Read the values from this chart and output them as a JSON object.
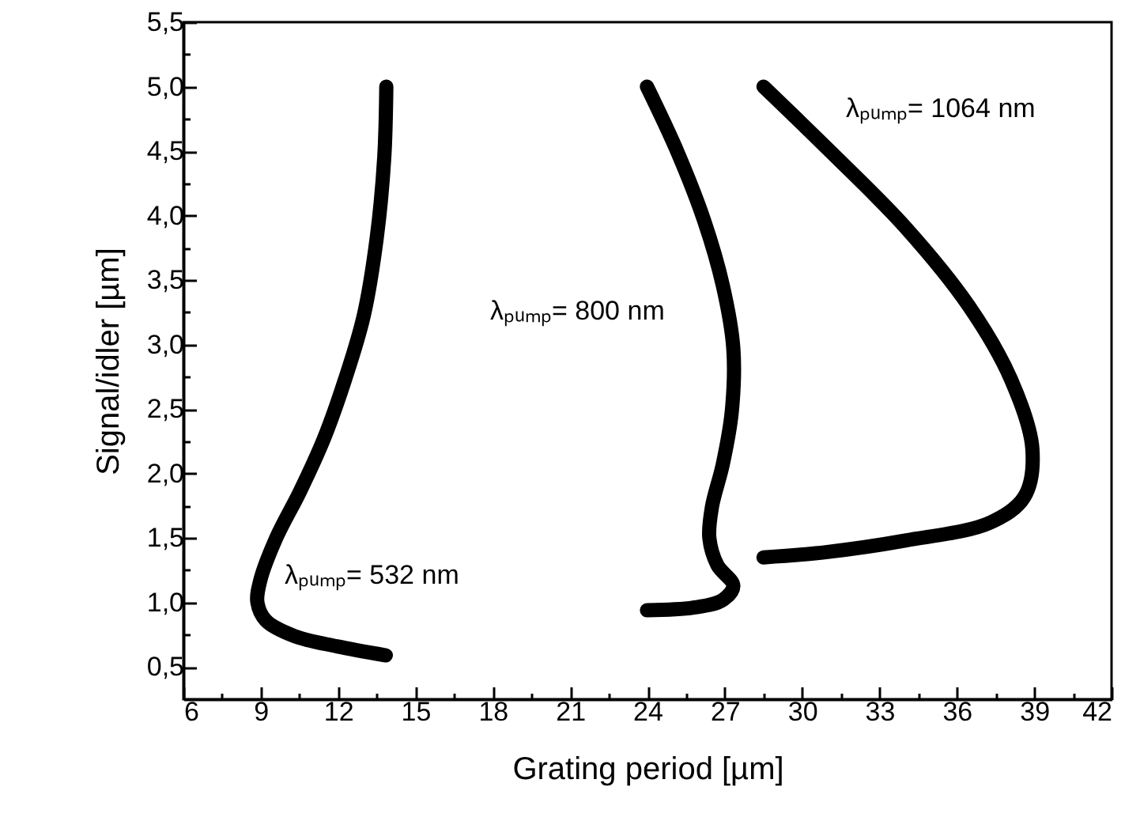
{
  "chart_data": {
    "type": "line",
    "xlabel": "Grating period [µm]",
    "ylabel": "Signal/idler [µm]",
    "xlim": [
      6,
      42
    ],
    "ylim": [
      0.25,
      5.5
    ],
    "xticks": [
      6,
      {
        "value": 7.5,
        "label": null
      },
      9,
      {
        "value": 10.5,
        "label": null
      },
      12,
      {
        "value": 13.5,
        "label": null
      },
      15,
      {
        "value": 16.5,
        "label": null
      },
      18,
      {
        "value": 19.5,
        "label": null
      },
      21,
      {
        "value": 22.5,
        "label": null
      },
      24,
      {
        "value": 25.5,
        "label": null
      },
      27,
      {
        "value": 28.5,
        "label": null
      },
      30,
      {
        "value": 31.5,
        "label": null
      },
      33,
      {
        "value": 34.5,
        "label": null
      },
      36,
      {
        "value": 37.5,
        "label": null
      },
      39,
      {
        "value": 40.5,
        "label": null
      },
      42
    ],
    "yticks": [
      {
        "value": 0.5,
        "label": "0,5"
      },
      {
        "value": 0.75,
        "label": null
      },
      {
        "value": 1,
        "label": "1,0"
      },
      {
        "value": 1.25,
        "label": null
      },
      {
        "value": 1.5,
        "label": "1,5"
      },
      {
        "value": 1.75,
        "label": null
      },
      {
        "value": 2,
        "label": "2,0"
      },
      {
        "value": 2.25,
        "label": null
      },
      {
        "value": 2.5,
        "label": "2,5"
      },
      {
        "value": 2.75,
        "label": null
      },
      {
        "value": 3,
        "label": "3,0"
      },
      {
        "value": 3.25,
        "label": null
      },
      {
        "value": 3.5,
        "label": "3,5"
      },
      {
        "value": 3.75,
        "label": null
      },
      {
        "value": 4,
        "label": "4,0"
      },
      {
        "value": 4.25,
        "label": null
      },
      {
        "value": 4.5,
        "label": "4,5"
      },
      {
        "value": 4.75,
        "label": null
      },
      {
        "value": 5,
        "label": "5,0"
      },
      {
        "value": 5.25,
        "label": null
      },
      {
        "value": 5.5,
        "label": "5,5"
      }
    ],
    "series": [
      {
        "color": "#000000",
        "x": [
          13.87,
          13.79,
          13.5,
          12.99,
          12.27,
          11.45,
          10.52,
          9.6,
          8.98,
          8.87,
          9.2,
          10.3,
          11.95,
          13.85
        ],
        "values": [
          5.0,
          4.45,
          3.83,
          3.22,
          2.73,
          2.27,
          1.86,
          1.5,
          1.17,
          1.0,
          0.86,
          0.74,
          0.66,
          0.59
        ]
      },
      {
        "color": "#000000",
        "x": [
          23.98,
          25.17,
          26.2,
          26.92,
          27.33,
          27.27,
          26.92,
          26.5,
          26.4,
          26.71,
          27.33,
          26.92,
          25.79,
          23.98
        ],
        "values": [
          5.0,
          4.49,
          3.96,
          3.46,
          2.97,
          2.48,
          2.07,
          1.74,
          1.5,
          1.29,
          1.13,
          1.02,
          0.96,
          0.94
        ]
      },
      {
        "color": "#000000",
        "x": [
          28.5,
          31.13,
          34.0,
          36.46,
          38.1,
          38.93,
          38.62,
          37.3,
          34.0,
          30.92,
          28.5
        ],
        "values": [
          5.0,
          4.49,
          3.91,
          3.3,
          2.73,
          2.19,
          1.82,
          1.62,
          1.48,
          1.39,
          1.35
        ]
      }
    ],
    "line_style": "solid",
    "annotations": [
      "λₚᵤₘₚ= 532 nm",
      "λₚᵤₘₚ= 800 nm",
      "λₚᵤₘₚ= 1064 nm"
    ]
  }
}
